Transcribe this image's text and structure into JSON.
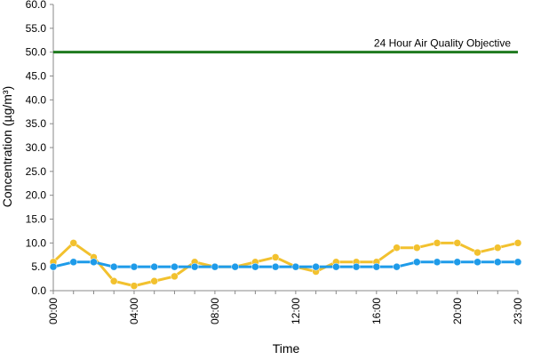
{
  "chart_data": {
    "type": "line",
    "title": "",
    "xlabel": "Time",
    "ylabel": "Concentration (µg/m³)",
    "ylim": [
      0,
      60
    ],
    "yticks": [
      "0.0",
      "5.0",
      "10.0",
      "15.0",
      "20.0",
      "25.0",
      "30.0",
      "35.0",
      "40.0",
      "45.0",
      "50.0",
      "55.0",
      "60.0"
    ],
    "x": [
      "00:00",
      "01:00",
      "02:00",
      "03:00",
      "04:00",
      "05:00",
      "06:00",
      "07:00",
      "08:00",
      "09:00",
      "10:00",
      "11:00",
      "12:00",
      "13:00",
      "14:00",
      "15:00",
      "16:00",
      "17:00",
      "18:00",
      "19:00",
      "20:00",
      "21:00",
      "22:00",
      "23:00"
    ],
    "xtick_labels": [
      "00:00",
      "04:00",
      "08:00",
      "12:00",
      "16:00",
      "20:00",
      "23:00"
    ],
    "grid": false,
    "series": [
      {
        "color": "#f2c12e",
        "values": [
          6,
          10,
          7,
          2,
          1,
          2,
          3,
          6,
          5,
          5,
          6,
          7,
          5,
          4,
          6,
          6,
          6,
          9,
          9,
          10,
          10,
          8,
          9,
          10
        ]
      },
      {
        "color": "#1e9be9",
        "values": [
          5,
          6,
          6,
          5,
          5,
          5,
          5,
          5,
          5,
          5,
          5,
          5,
          5,
          5,
          5,
          5,
          5,
          5,
          6,
          6,
          6,
          6,
          6,
          6
        ]
      }
    ],
    "reference_line": {
      "label": "24 Hour Air Quality Objective",
      "value": 50,
      "color": "#1f7a1f"
    }
  }
}
